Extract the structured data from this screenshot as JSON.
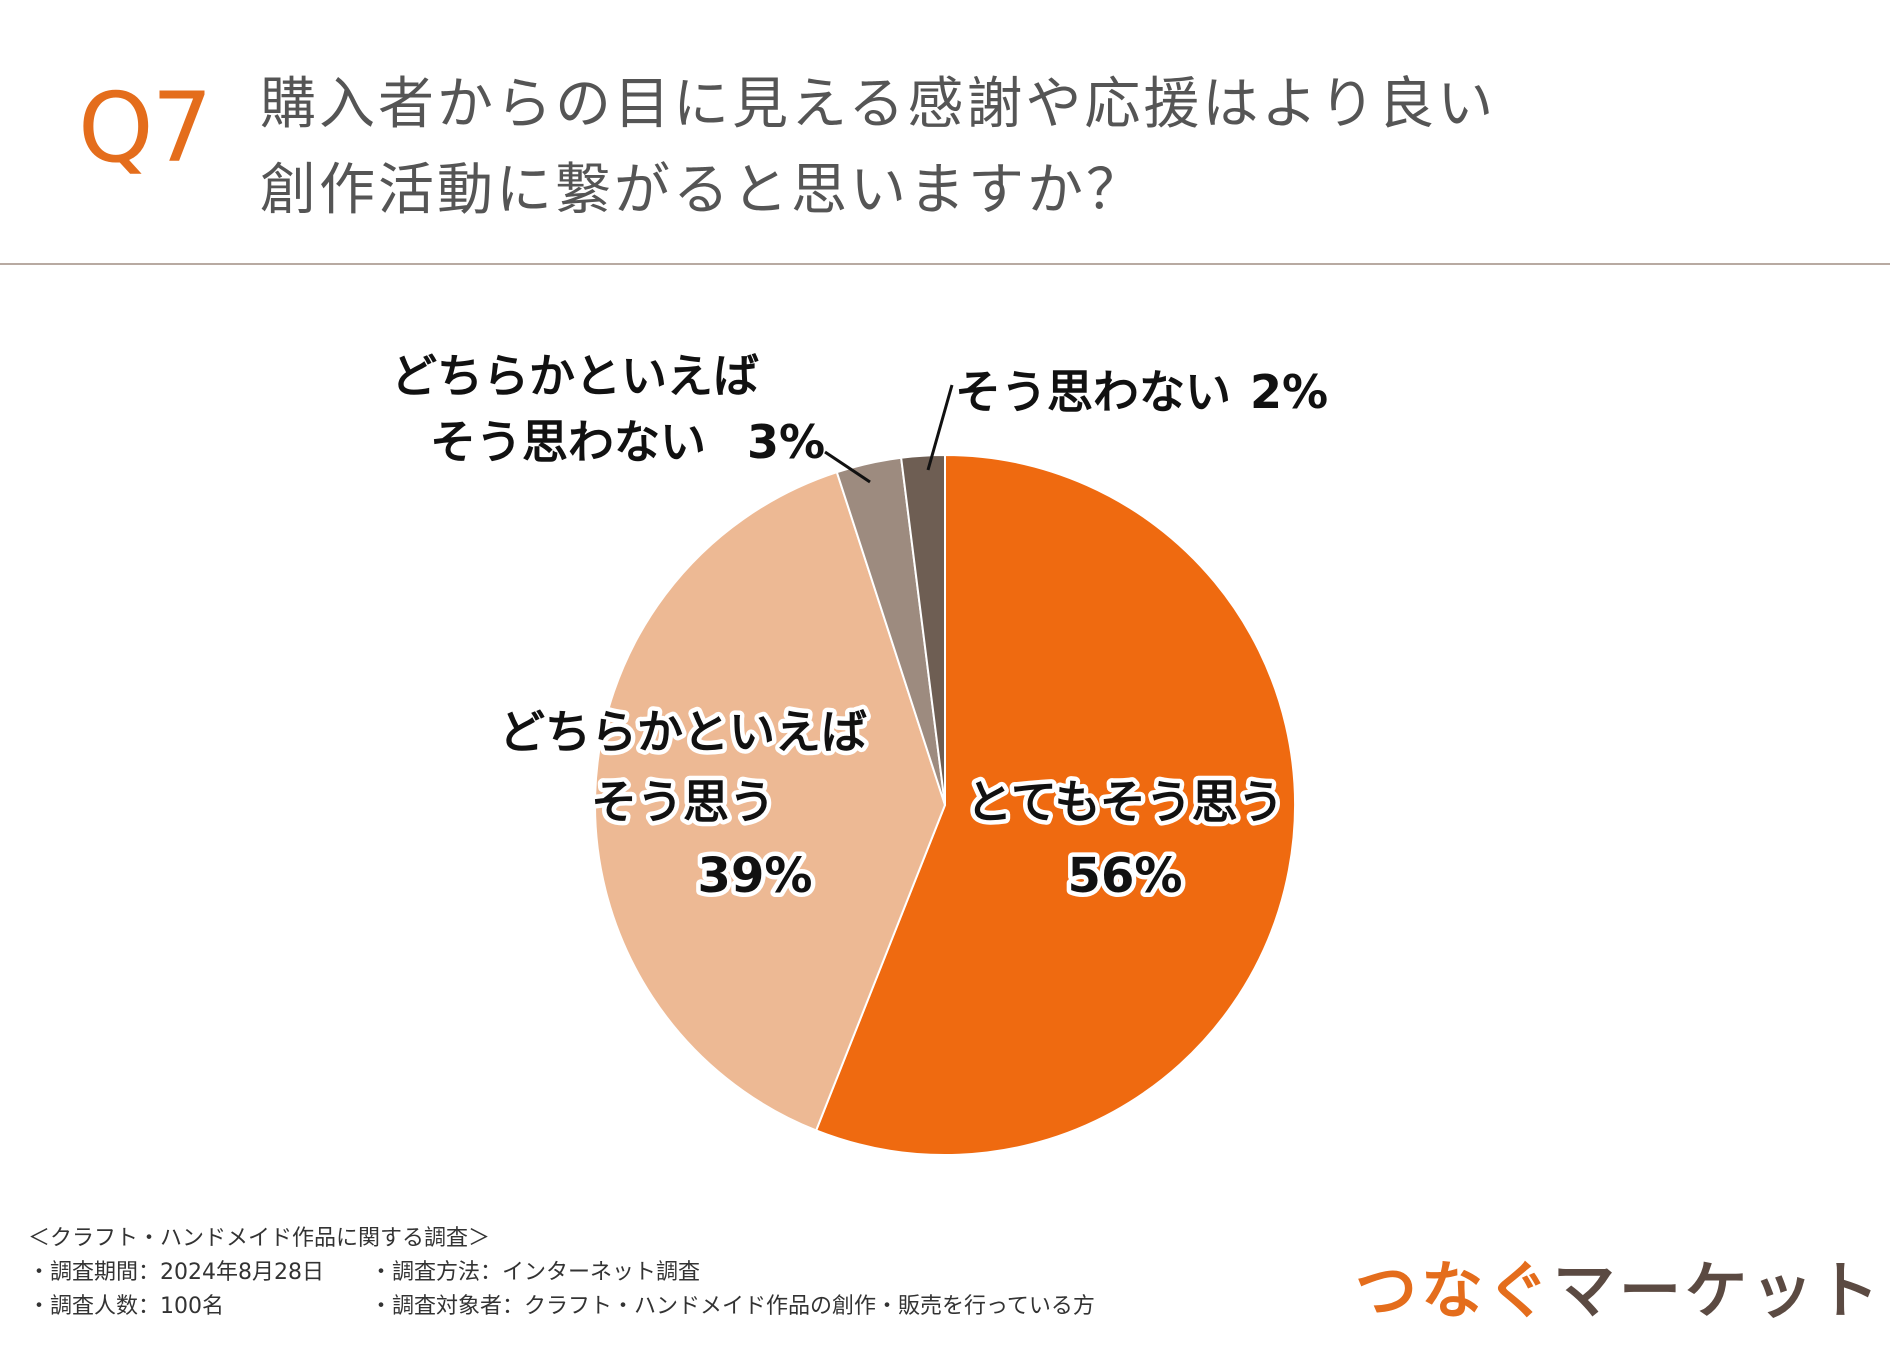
{
  "header": {
    "question_no": "Q7",
    "title_line1": "購入者からの目に見える感謝や応援はより良い",
    "title_line2": "創作活動に繋がると思いますか？"
  },
  "colors": {
    "accent": "#e46d1c",
    "slice_very": "#ef6a10",
    "slice_somewhat": "#edb994",
    "slice_somewhat_not": "#9d8b7f",
    "slice_not": "#6e5e53"
  },
  "chart_data": {
    "type": "pie",
    "title": "購入者からの目に見える感謝や応援はより良い創作活動に繋がると思いますか？",
    "start": "12 o'clock, clockwise",
    "slices": [
      {
        "label": "とてもそう思う",
        "label_lines": [
          "とてもそう思う"
        ],
        "value": 56,
        "value_label": "56%",
        "color": "#ef6a10"
      },
      {
        "label": "どちらかといえばそう思う",
        "label_lines": [
          "どちらかといえば",
          "そう思う"
        ],
        "value": 39,
        "value_label": "39%",
        "color": "#edb994"
      },
      {
        "label": "どちらかといえばそう思わない",
        "label_lines": [
          "どちらかといえば",
          "そう思わない"
        ],
        "value": 3,
        "value_label": "3%",
        "color": "#9d8b7f"
      },
      {
        "label": "そう思わない",
        "label_lines": [
          "そう思わない"
        ],
        "value": 2,
        "value_label": "2%",
        "color": "#6e5e53"
      }
    ]
  },
  "footer": {
    "survey_name": "＜クラフト・ハンドメイド作品に関する調査＞",
    "period": "・調査期間：2024年8月28日",
    "method": "・調査方法：インターネット調査",
    "count": "・調査人数：100名",
    "target": "・調査対象者：クラフト・ハンドメイド作品の創作・販売を行っている方"
  },
  "brand": {
    "part1": "つなぐ",
    "part2": "マーケット"
  }
}
